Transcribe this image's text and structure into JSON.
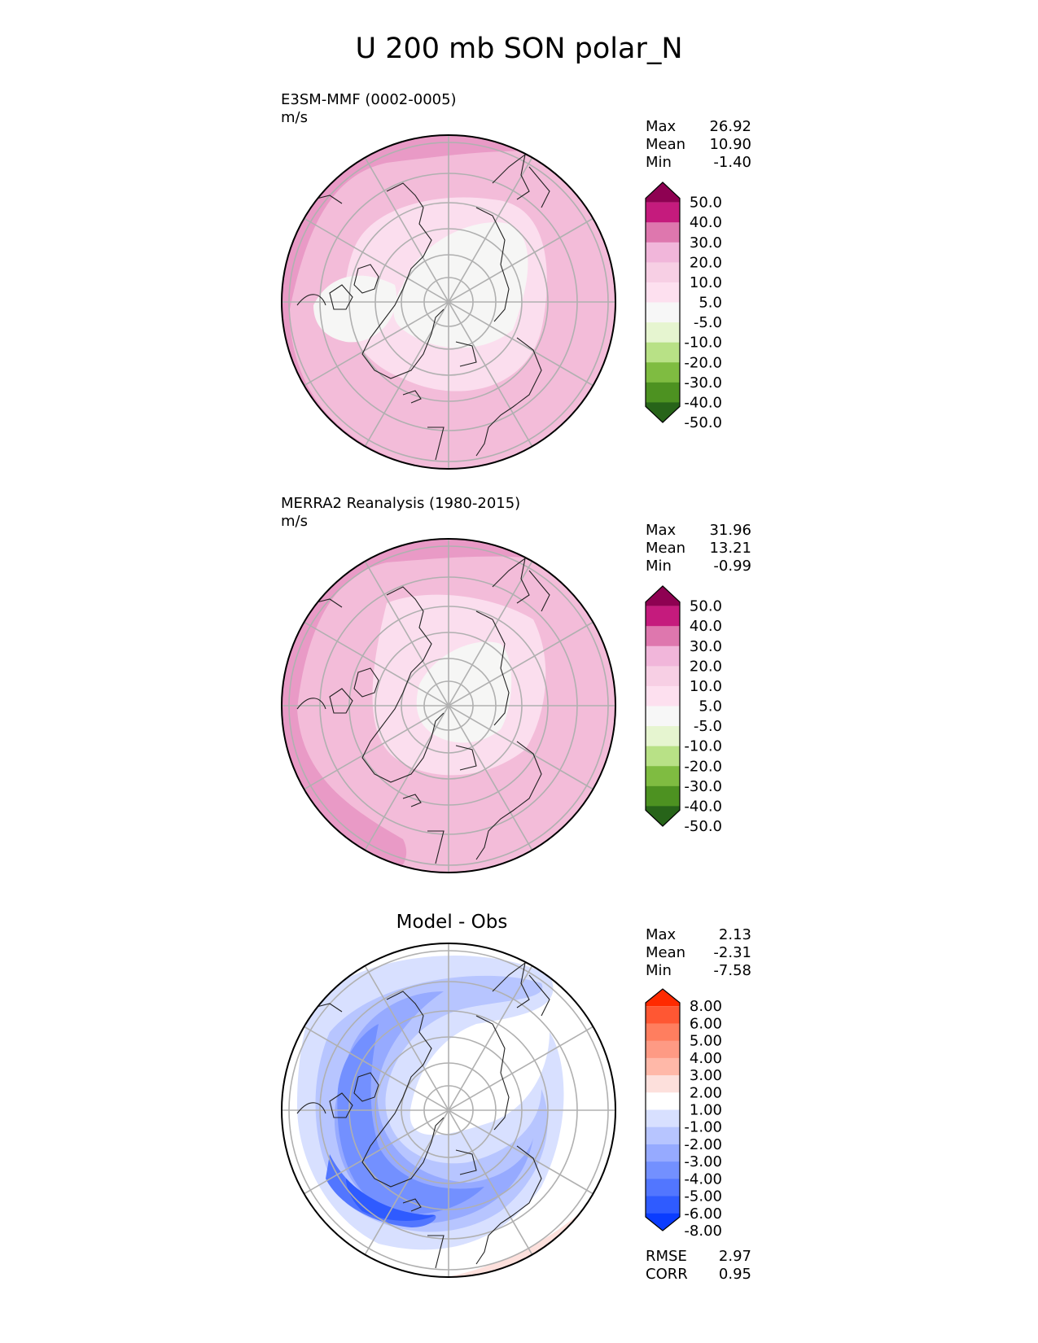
{
  "figure_title": "U 200 mb SON polar_N",
  "panels": [
    {
      "title": "E3SM-MMF (0002-0005)",
      "units": "m/s",
      "stats": {
        "max_label": "Max",
        "max": "26.92",
        "mean_label": "Mean",
        "mean": "10.90",
        "min_label": "Min",
        "min": "-1.40"
      }
    },
    {
      "title": "MERRA2 Reanalysis (1980-2015)",
      "units": "m/s",
      "stats": {
        "max_label": "Max",
        "max": "31.96",
        "mean_label": "Mean",
        "mean": "13.21",
        "min_label": "Min",
        "min": "-0.99"
      }
    },
    {
      "title": "Model - Obs",
      "stats": {
        "max_label": "Max",
        "max": "2.13",
        "mean_label": "Mean",
        "mean": "-2.31",
        "min_label": "Min",
        "min": "-7.58"
      },
      "metrics": {
        "rmse_label": "RMSE",
        "rmse": "2.97",
        "corr_label": "CORR",
        "corr": "0.95"
      }
    }
  ],
  "chart_data": {
    "type": "heatmap",
    "projection": "north polar stereographic",
    "variable": "U 200 mb",
    "season": "SON",
    "colorbars": [
      {
        "ticks": [
          "50.0",
          "40.0",
          "30.0",
          "20.0",
          "10.0",
          "5.0",
          "-5.0",
          "-10.0",
          "-20.0",
          "-30.0",
          "-40.0",
          "-50.0"
        ],
        "colors": [
          "#8e0152",
          "#c51b7d",
          "#de77ae",
          "#f1b6da",
          "#f7cfe4",
          "#fde0ef",
          "#f7f7f7",
          "#e6f5d0",
          "#b8e186",
          "#7fbc41",
          "#4d9221",
          "#276419"
        ]
      },
      {
        "ticks": [
          "8.00",
          "6.00",
          "5.00",
          "4.00",
          "3.00",
          "2.00",
          "1.00",
          "-1.00",
          "-2.00",
          "-3.00",
          "-4.00",
          "-5.00",
          "-6.00",
          "-8.00"
        ],
        "colors": [
          "#ff2a00",
          "#ff5733",
          "#ff7e5f",
          "#fe9a84",
          "#ffb8a8",
          "#fde0dc",
          "#ffffff",
          "#d8e0ff",
          "#b7c5ff",
          "#96aaff",
          "#7390ff",
          "#5276ff",
          "#2f5bff",
          "#0a3cff"
        ]
      }
    ]
  }
}
